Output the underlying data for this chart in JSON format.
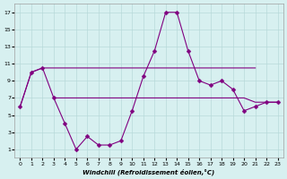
{
  "x": [
    0,
    1,
    2,
    3,
    4,
    5,
    6,
    7,
    8,
    9,
    10,
    11,
    12,
    13,
    14,
    15,
    16,
    17,
    18,
    19,
    20,
    21,
    22,
    23
  ],
  "line_main": [
    6,
    10,
    10.5,
    7,
    4,
    1,
    2.5,
    1.5,
    1.5,
    2,
    5.5,
    9.5,
    12.5,
    17,
    17,
    12.5,
    9,
    8.5,
    9,
    8,
    5.5,
    6,
    6.5,
    6.5
  ],
  "line_top_x": [
    0,
    1,
    2,
    3,
    4,
    5,
    6,
    7,
    8,
    9,
    10,
    11,
    12,
    13,
    14,
    15,
    16,
    17,
    18,
    19,
    20,
    21
  ],
  "line_top_y": [
    6,
    10,
    10.5,
    10.5,
    10.5,
    10.5,
    10.5,
    10.5,
    10.5,
    10.5,
    10.5,
    10.5,
    10.5,
    10.5,
    10.5,
    10.5,
    10.5,
    10.5,
    10.5,
    10.5,
    10.5,
    10.5
  ],
  "line_bot_x": [
    3,
    4,
    5,
    6,
    7,
    8,
    9,
    10,
    11,
    12,
    13,
    14,
    15,
    16,
    17,
    18,
    19,
    20,
    21,
    22,
    23
  ],
  "line_bot_y": [
    7,
    7,
    7,
    7,
    7,
    7,
    7,
    7,
    7,
    7,
    7,
    7,
    7,
    7,
    7,
    7,
    7,
    7,
    6.5,
    6.5,
    6.5
  ],
  "xlabel": "Windchill (Refroidissement éolien,°C)",
  "xlim": [
    -0.5,
    23.5
  ],
  "ylim": [
    0,
    18
  ],
  "yticks": [
    1,
    3,
    5,
    7,
    9,
    11,
    13,
    15,
    17
  ],
  "xticks": [
    0,
    1,
    2,
    3,
    4,
    5,
    6,
    7,
    8,
    9,
    10,
    11,
    12,
    13,
    14,
    15,
    16,
    17,
    18,
    19,
    20,
    21,
    22,
    23
  ],
  "line_color": "#800080",
  "bg_color": "#d7f0f0",
  "grid_color": "#b8dada",
  "markersize": 2.5
}
